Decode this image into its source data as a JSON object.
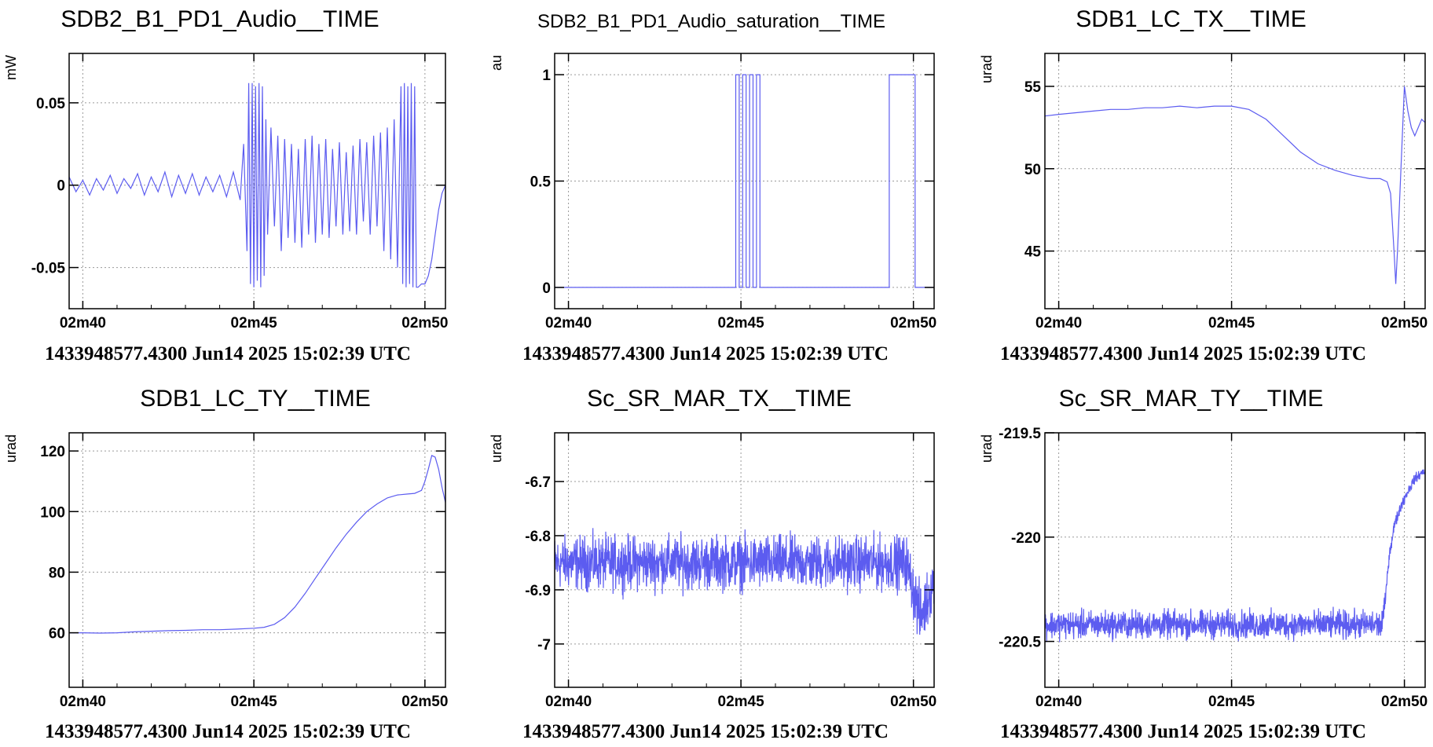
{
  "colors": {
    "line": "#5c5cf0",
    "grid": "#9a9a9a",
    "frame": "#000000"
  },
  "chart_data": [
    {
      "type": "line",
      "title": "SDB2_B1_PD1_Audio__TIME",
      "ylabel": "mW",
      "footer": "1433948577.4300 Jun14 2025 15:02:39 UTC",
      "xlim": [
        39.6,
        50.6
      ],
      "ylim": [
        -0.075,
        0.08
      ],
      "xticks": [
        {
          "v": 40,
          "label": "02m40"
        },
        {
          "v": 45,
          "label": "02m45"
        },
        {
          "v": 50,
          "label": "02m50"
        }
      ],
      "yticks": [
        {
          "v": 0.05,
          "label": "0.05"
        },
        {
          "v": 0,
          "label": "0"
        },
        {
          "v": -0.05,
          "label": "-0.05"
        }
      ],
      "series": [
        {
          "x": [
            39.6,
            39.8,
            40.0,
            40.2,
            40.4,
            40.6,
            40.8,
            41.0,
            41.2,
            41.4,
            41.6,
            41.8,
            42.0,
            42.2,
            42.4,
            42.6,
            42.8,
            43.0,
            43.2,
            43.4,
            43.6,
            43.8,
            44.0,
            44.2,
            44.4,
            44.6,
            44.7,
            44.8,
            44.85,
            44.9,
            44.95,
            45.0,
            45.05,
            45.1,
            45.15,
            45.2,
            45.25,
            45.3,
            45.35,
            45.4,
            45.5,
            45.6,
            45.7,
            45.8,
            45.9,
            46.0,
            46.1,
            46.2,
            46.3,
            46.4,
            46.5,
            46.6,
            46.7,
            46.8,
            46.9,
            47.0,
            47.1,
            47.2,
            47.3,
            47.4,
            47.5,
            47.6,
            47.7,
            47.8,
            47.9,
            48.0,
            48.1,
            48.2,
            48.3,
            48.4,
            48.5,
            48.6,
            48.7,
            48.8,
            48.9,
            49.0,
            49.1,
            49.2,
            49.3,
            49.35,
            49.4,
            49.45,
            49.5,
            49.55,
            49.6,
            49.65,
            49.7,
            49.75,
            49.8,
            49.9,
            50.0,
            50.1,
            50.2,
            50.3,
            50.4,
            50.5,
            50.6
          ],
          "y": [
            0.005,
            -0.004,
            0.003,
            -0.006,
            0.004,
            -0.003,
            0.006,
            -0.005,
            0.004,
            -0.002,
            0.007,
            -0.006,
            0.005,
            -0.004,
            0.008,
            -0.007,
            0.006,
            -0.005,
            0.007,
            -0.006,
            0.005,
            -0.004,
            0.006,
            -0.007,
            0.008,
            -0.009,
            0.025,
            -0.04,
            0.062,
            -0.06,
            0.062,
            -0.062,
            0.06,
            -0.058,
            0.062,
            -0.062,
            0.06,
            -0.055,
            0.04,
            -0.03,
            0.035,
            -0.025,
            0.03,
            -0.04,
            0.028,
            -0.032,
            0.025,
            -0.035,
            0.022,
            -0.038,
            0.028,
            -0.03,
            0.03,
            -0.035,
            0.025,
            -0.03,
            0.028,
            -0.032,
            0.022,
            -0.025,
            0.026,
            -0.03,
            0.02,
            -0.028,
            0.024,
            -0.03,
            0.028,
            -0.022,
            0.026,
            -0.03,
            0.03,
            -0.025,
            0.032,
            -0.04,
            0.035,
            -0.045,
            0.04,
            -0.05,
            0.06,
            -0.06,
            0.062,
            -0.062,
            0.06,
            -0.06,
            0.062,
            -0.062,
            0.06,
            -0.062,
            -0.062,
            -0.06,
            -0.06,
            -0.055,
            -0.045,
            -0.03,
            -0.015,
            -0.005,
            0.0
          ]
        }
      ]
    },
    {
      "type": "line",
      "title": "SDB2_B1_PD1_Audio_saturation__TIME",
      "ylabel": "au",
      "footer": "1433948577.4300 Jun14 2025 15:02:39 UTC",
      "xlim": [
        39.6,
        50.6
      ],
      "ylim": [
        -0.1,
        1.1
      ],
      "xticks": [
        {
          "v": 40,
          "label": "02m40"
        },
        {
          "v": 45,
          "label": "02m45"
        },
        {
          "v": 50,
          "label": "02m50"
        }
      ],
      "yticks": [
        {
          "v": 1,
          "label": "1"
        },
        {
          "v": 0.5,
          "label": "0.5"
        },
        {
          "v": 0,
          "label": "0"
        }
      ],
      "series": [
        {
          "x": [
            39.6,
            44.85,
            44.85,
            44.95,
            44.95,
            45.05,
            45.05,
            45.15,
            45.15,
            45.25,
            45.25,
            45.35,
            45.35,
            45.45,
            45.45,
            45.55,
            45.55,
            49.3,
            49.3,
            50.05,
            50.05,
            50.6
          ],
          "y": [
            0,
            0,
            1,
            1,
            0,
            0,
            1,
            1,
            0,
            0,
            1,
            1,
            0,
            0,
            1,
            1,
            0,
            0,
            1,
            1,
            0,
            0
          ]
        }
      ]
    },
    {
      "type": "line",
      "title": "SDB1_LC_TX__TIME",
      "ylabel": "urad",
      "footer": "1433948577.4300 Jun14 2025 15:02:39 UTC",
      "xlim": [
        39.6,
        50.6
      ],
      "ylim": [
        41.5,
        57.0
      ],
      "xticks": [
        {
          "v": 40,
          "label": "02m40"
        },
        {
          "v": 45,
          "label": "02m45"
        },
        {
          "v": 50,
          "label": "02m50"
        }
      ],
      "yticks": [
        {
          "v": 55,
          "label": "55"
        },
        {
          "v": 50,
          "label": "50"
        },
        {
          "v": 45,
          "label": "45"
        }
      ],
      "series": [
        {
          "x": [
            39.6,
            40.0,
            40.5,
            41.0,
            41.5,
            42.0,
            42.5,
            43.0,
            43.5,
            44.0,
            44.5,
            45.0,
            45.5,
            46.0,
            46.5,
            47.0,
            47.5,
            48.0,
            48.5,
            49.0,
            49.3,
            49.5,
            49.6,
            49.7,
            49.75,
            49.8,
            49.9,
            50.0,
            50.1,
            50.2,
            50.3,
            50.4,
            50.5,
            50.6
          ],
          "y": [
            53.2,
            53.3,
            53.4,
            53.5,
            53.6,
            53.6,
            53.7,
            53.7,
            53.8,
            53.7,
            53.8,
            53.8,
            53.6,
            53.0,
            52.0,
            51.0,
            50.3,
            49.9,
            49.6,
            49.4,
            49.4,
            49.2,
            48.5,
            45.0,
            43.0,
            45.0,
            50.0,
            55.0,
            53.5,
            52.5,
            52.0,
            52.5,
            53.0,
            52.8
          ]
        }
      ]
    },
    {
      "type": "line",
      "title": "SDB1_LC_TY__TIME",
      "ylabel": "urad",
      "footer": "1433948577.4300 Jun14 2025 15:02:39 UTC",
      "xlim": [
        39.6,
        50.6
      ],
      "ylim": [
        42,
        126
      ],
      "xticks": [
        {
          "v": 40,
          "label": "02m40"
        },
        {
          "v": 45,
          "label": "02m45"
        },
        {
          "v": 50,
          "label": "02m50"
        }
      ],
      "yticks": [
        {
          "v": 120,
          "label": "120"
        },
        {
          "v": 100,
          "label": "100"
        },
        {
          "v": 80,
          "label": "80"
        },
        {
          "v": 60,
          "label": "60"
        }
      ],
      "series": [
        {
          "x": [
            39.6,
            40.0,
            40.5,
            41.0,
            41.5,
            42.0,
            42.5,
            43.0,
            43.5,
            44.0,
            44.5,
            45.0,
            45.3,
            45.6,
            45.9,
            46.2,
            46.5,
            46.8,
            47.1,
            47.4,
            47.7,
            48.0,
            48.3,
            48.6,
            48.9,
            49.2,
            49.5,
            49.7,
            49.9,
            50.0,
            50.1,
            50.2,
            50.3,
            50.4,
            50.5,
            50.6
          ],
          "y": [
            60.0,
            60.0,
            59.9,
            60.0,
            60.3,
            60.5,
            60.7,
            60.8,
            61.0,
            61.0,
            61.2,
            61.5,
            61.8,
            62.8,
            65.0,
            68.5,
            73.0,
            78.0,
            83.0,
            88.0,
            92.5,
            96.5,
            100.0,
            102.5,
            104.5,
            105.5,
            105.8,
            106.0,
            107.0,
            110.0,
            114.0,
            118.5,
            118.0,
            114.0,
            108.0,
            103.0
          ]
        }
      ]
    },
    {
      "type": "line",
      "title": "Sc_SR_MAR_TX__TIME",
      "ylabel": "urad",
      "footer": "1433948577.4300 Jun14 2025 15:02:39 UTC",
      "xlim": [
        39.6,
        50.6
      ],
      "ylim": [
        -7.08,
        -6.61
      ],
      "xticks": [
        {
          "v": 40,
          "label": "02m40"
        },
        {
          "v": 45,
          "label": "02m45"
        },
        {
          "v": 50,
          "label": "02m50"
        }
      ],
      "yticks": [
        {
          "v": -6.7,
          "label": "-6.7"
        },
        {
          "v": -6.8,
          "label": "-6.8"
        },
        {
          "v": -6.9,
          "label": "-6.9"
        },
        {
          "v": -7,
          "label": "-7"
        }
      ],
      "series": [
        {
          "noise": true,
          "x": [
            39.6,
            49.8,
            50.0,
            50.2,
            50.4,
            50.6
          ],
          "center": [
            -6.85,
            -6.85,
            -6.9,
            -6.95,
            -6.92,
            -6.88
          ],
          "amp": [
            0.065,
            0.065,
            0.07,
            0.075,
            0.07,
            0.06
          ]
        }
      ]
    },
    {
      "type": "line",
      "title": "Sc_SR_MAR_TY__TIME",
      "ylabel": "urad",
      "footer": "1433948577.4300 Jun14 2025 15:02:39 UTC",
      "xlim": [
        39.6,
        50.6
      ],
      "ylim": [
        -220.72,
        -219.5
      ],
      "xticks": [
        {
          "v": 40,
          "label": "02m40"
        },
        {
          "v": 45,
          "label": "02m45"
        },
        {
          "v": 50,
          "label": "02m50"
        }
      ],
      "yticks": [
        {
          "v": -219.5,
          "label": "-219.5"
        },
        {
          "v": -220,
          "label": "-220"
        },
        {
          "v": -220.5,
          "label": "-220.5"
        }
      ],
      "series": [
        {
          "noise": true,
          "x": [
            39.6,
            49.35,
            49.45,
            49.55,
            49.7,
            49.9,
            50.1,
            50.3,
            50.6
          ],
          "center": [
            -220.42,
            -220.42,
            -220.3,
            -220.1,
            -219.95,
            -219.85,
            -219.78,
            -219.72,
            -219.68
          ],
          "amp": [
            0.09,
            0.09,
            0.05,
            0.04,
            0.04,
            0.035,
            0.035,
            0.03,
            0.03
          ]
        }
      ]
    }
  ]
}
